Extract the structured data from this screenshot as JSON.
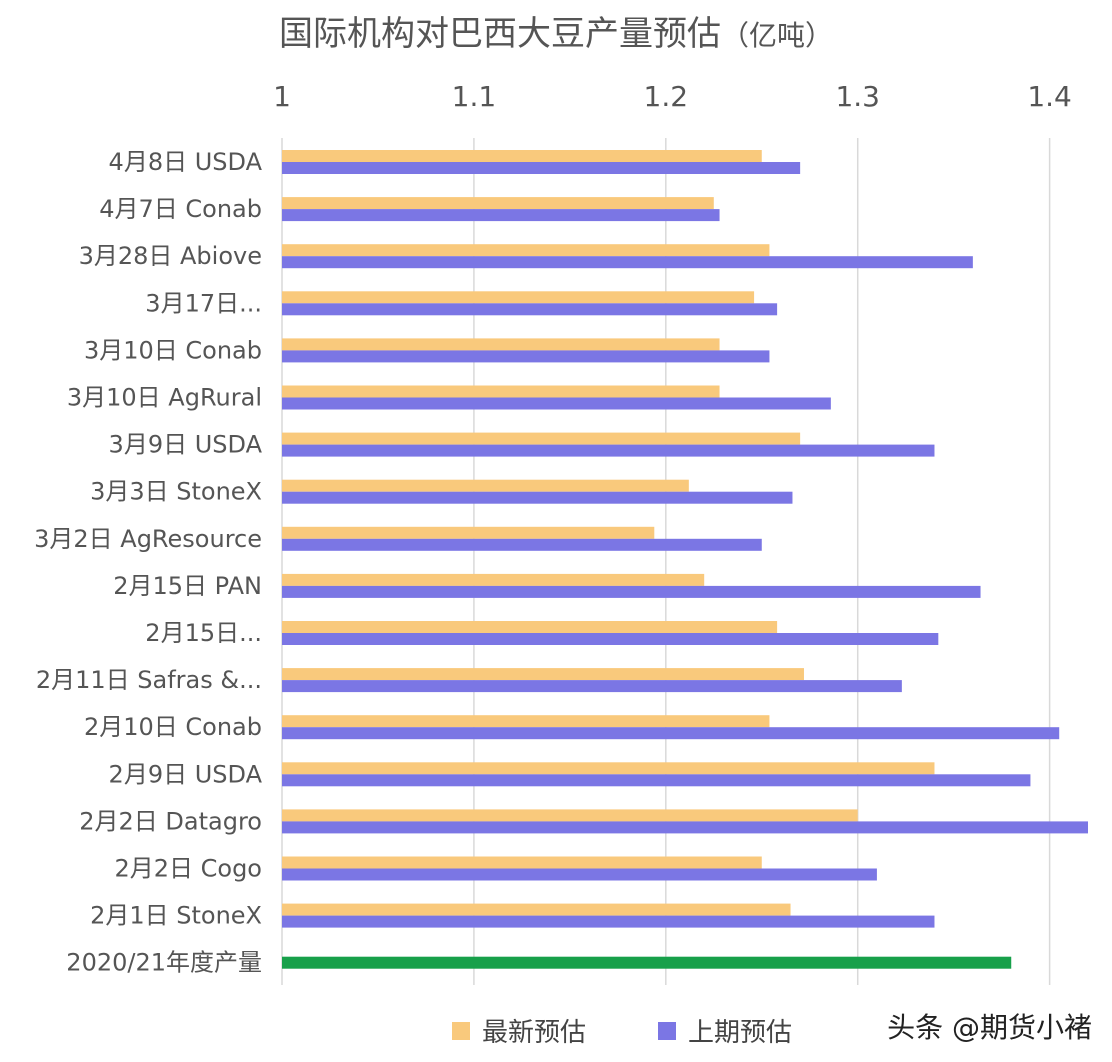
{
  "chart_data": {
    "type": "bar",
    "orientation": "horizontal",
    "title": "国际机构对巴西大豆产量预估",
    "title_unit": "（亿吨）",
    "xlim": [
      1,
      1.42
    ],
    "x_ticks": [
      1,
      1.1,
      1.2,
      1.3,
      1.4
    ],
    "x_tick_labels": [
      "1",
      "1.1",
      "1.2",
      "1.3",
      "1.4"
    ],
    "axis_position": "top",
    "grid": true,
    "legend_position": "bottom",
    "categories": [
      "4月8日 USDA",
      "4月7日 Conab",
      "3月28日 Abiove",
      "3月17日...",
      "3月10日 Conab",
      "3月10日 AgRural",
      "3月9日 USDA",
      "3月3日 StoneX",
      "3月2日 AgResource",
      "2月15日 PAN",
      "2月15日...",
      "2月11日 Safras &...",
      "2月10日 Conab",
      "2月9日 USDA",
      "2月2日 Datagro",
      "2月2日 Cogo",
      "2月1日 StoneX",
      "2020/21年度产量"
    ],
    "series": [
      {
        "name": "最新预估",
        "color": "#F9C97C",
        "values": [
          1.25,
          1.225,
          1.254,
          1.246,
          1.228,
          1.228,
          1.27,
          1.212,
          1.194,
          1.22,
          1.258,
          1.272,
          1.254,
          1.34,
          1.3,
          1.25,
          1.265,
          null
        ]
      },
      {
        "name": "上期预估",
        "color": "#7B76E4",
        "values": [
          1.27,
          1.228,
          1.36,
          1.258,
          1.254,
          1.286,
          1.34,
          1.266,
          1.25,
          1.364,
          1.342,
          1.323,
          1.405,
          1.39,
          1.42,
          1.31,
          1.34,
          null
        ]
      },
      {
        "name": "2020/21年度产量",
        "color": "#17A04A",
        "values": [
          null,
          null,
          null,
          null,
          null,
          null,
          null,
          null,
          null,
          null,
          null,
          null,
          null,
          null,
          null,
          null,
          null,
          1.38
        ]
      }
    ]
  },
  "legend": {
    "items": [
      {
        "label": "最新预估",
        "color": "#F9C97C"
      },
      {
        "label": "上期预估",
        "color": "#7B76E4"
      }
    ]
  },
  "watermark": {
    "text": "头条 @期货小褚"
  }
}
